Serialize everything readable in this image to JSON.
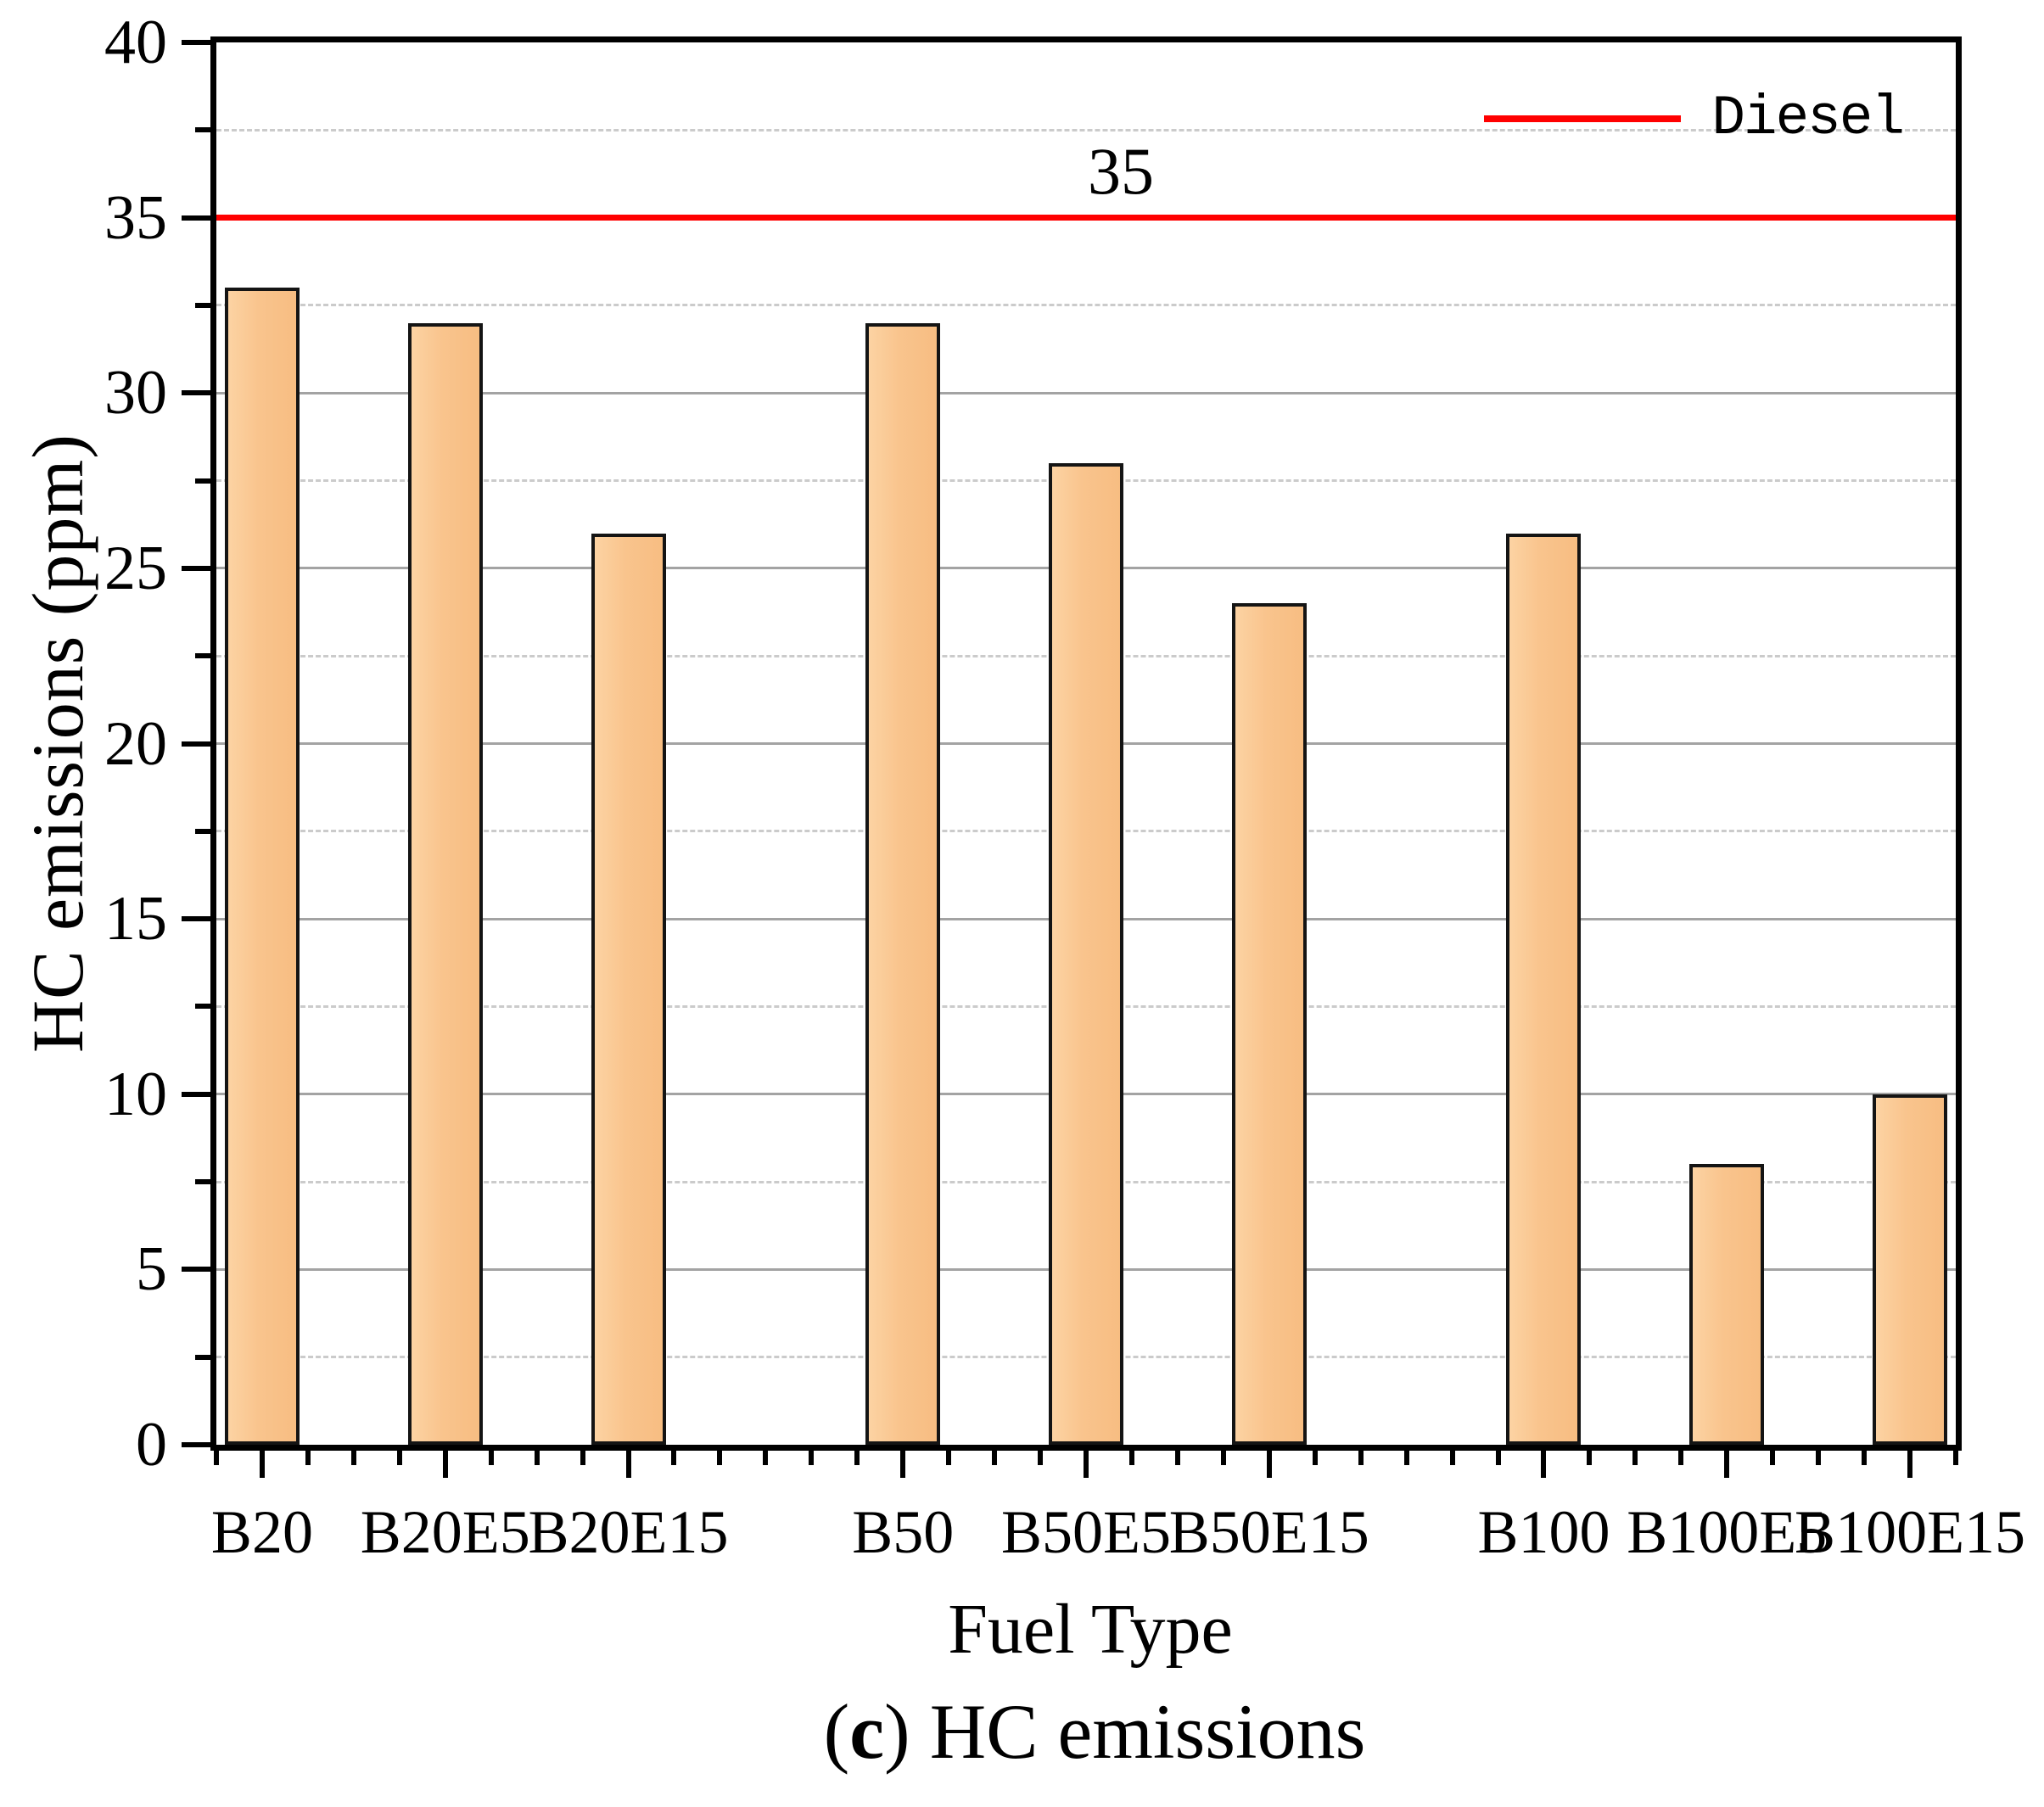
{
  "figure": {
    "caption": {
      "open": "(",
      "marker": "c",
      "rest": ") HC emissions"
    }
  },
  "chart_data": {
    "type": "bar",
    "title": "",
    "xlabel": "Fuel Type",
    "ylabel": "HC emissions (ppm)",
    "categories": [
      "B20",
      "B20E5",
      "B20E15",
      "B50",
      "B50E5",
      "B50E15",
      "B100",
      "B100E5",
      "B100E15"
    ],
    "values": [
      33,
      32,
      26,
      32,
      28,
      24,
      26,
      8,
      10
    ],
    "bar_centers_q": [
      1,
      5,
      9,
      15,
      19,
      23,
      29,
      33,
      37
    ],
    "quarter_slots_total": 38,
    "ylim": [
      0,
      40
    ],
    "y_ticks": [
      0,
      5,
      10,
      15,
      20,
      25,
      30,
      35,
      40
    ],
    "y_minor_step": 2.5,
    "grid": {
      "solid_every": 5,
      "dashed_every": 2.5,
      "grid_on": true
    },
    "reference_line": {
      "value": 35,
      "label": "35",
      "series_name": "Diesel",
      "color": "#ff0000"
    },
    "legend": {
      "position": "top-right",
      "entries": [
        {
          "label": "Diesel",
          "color": "#ff0000",
          "type": "line"
        }
      ]
    },
    "colors": {
      "bar_fill": "#f9c48d",
      "bar_edge": "#141414",
      "grid_solid": "#a3a3a3",
      "grid_dashed": "#cbcbcb",
      "axis": "#000000",
      "reference": "#ff0000"
    }
  }
}
